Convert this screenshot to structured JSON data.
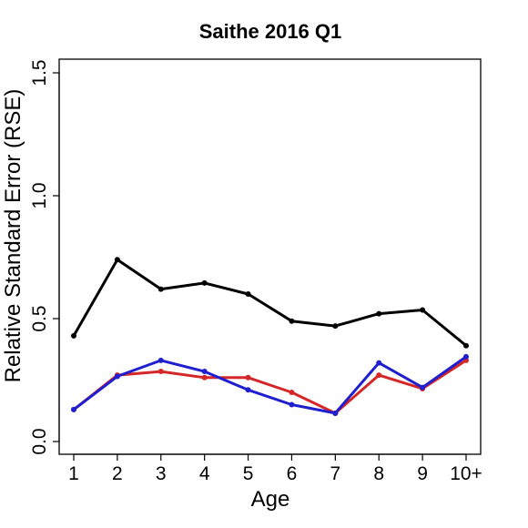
{
  "chart_data": {
    "type": "line",
    "title": "Saithe 2016 Q1",
    "xlabel": "Age",
    "ylabel": "Relative Standard Error (RSE)",
    "categories": [
      "1",
      "2",
      "3",
      "4",
      "5",
      "6",
      "7",
      "8",
      "9",
      "10+"
    ],
    "ylim": [
      0,
      1.5
    ],
    "yticks": [
      "0.0",
      "0.5",
      "1.0",
      "1.5"
    ],
    "grid": false,
    "series": [
      {
        "color": "#000000",
        "values": [
          0.43,
          0.74,
          0.62,
          0.645,
          0.6,
          0.49,
          0.47,
          0.52,
          0.535,
          0.39
        ]
      },
      {
        "color": "#d62728",
        "values": [
          0.13,
          0.27,
          0.285,
          0.26,
          0.26,
          0.2,
          0.115,
          0.27,
          0.215,
          0.33
        ]
      },
      {
        "color": "#1f1fcf",
        "values": [
          0.13,
          0.265,
          0.33,
          0.285,
          0.21,
          0.15,
          0.115,
          0.32,
          0.22,
          0.345
        ]
      }
    ]
  }
}
